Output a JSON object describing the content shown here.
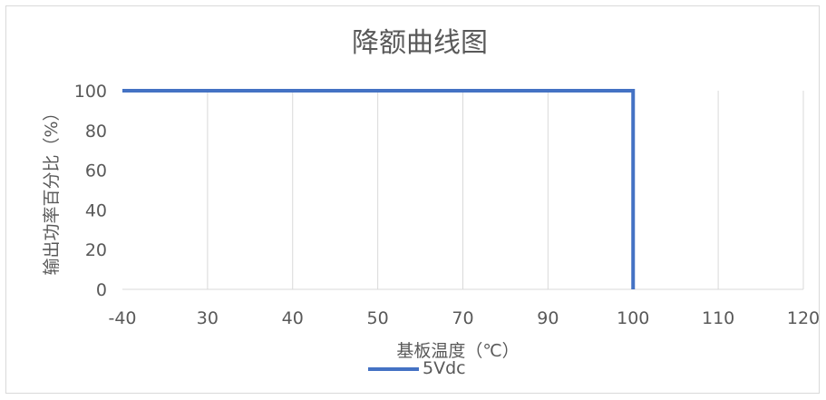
{
  "chart_data": {
    "type": "line",
    "title": "降额曲线图",
    "xlabel": "基板温度（℃）",
    "ylabel": "输出功率百分比（%）",
    "categories": [
      "-40",
      "30",
      "40",
      "50",
      "70",
      "90",
      "100",
      "110",
      "120"
    ],
    "ylim": [
      0,
      100
    ],
    "yticks": [
      0,
      20,
      40,
      60,
      80,
      100
    ],
    "grid": "vertical",
    "legend": "bottom",
    "series": [
      {
        "name": "5Vdc",
        "color": "#4472c4",
        "points": [
          {
            "x": "-40",
            "y": 100
          },
          {
            "x": "100",
            "y": 100
          },
          {
            "x": "100",
            "y": 0
          }
        ]
      }
    ]
  }
}
